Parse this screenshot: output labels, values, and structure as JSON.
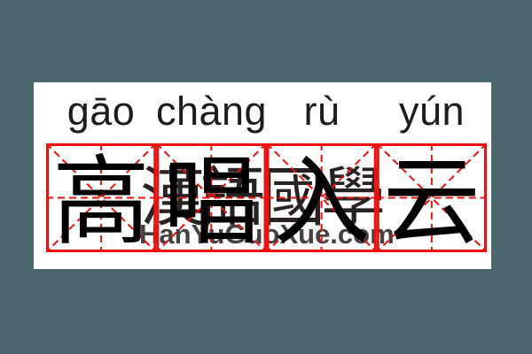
{
  "colors": {
    "matte_background": "#4c666e",
    "card_background": "#ffffff",
    "grid_red": "#f10e0e",
    "character_black": "#000000",
    "pinyin_color": "#1d1d1d",
    "watermark_color": "#2c2626"
  },
  "pinyin": {
    "syllables": [
      "gāo",
      "chàng",
      "rù",
      "yún"
    ]
  },
  "idiom": {
    "characters": [
      "高",
      "唱",
      "入",
      "云"
    ]
  },
  "watermark": {
    "cjk_text": "漢語國學",
    "site_text": "HanYuGuoXue.com"
  },
  "grid": {
    "cell_count": 4
  }
}
